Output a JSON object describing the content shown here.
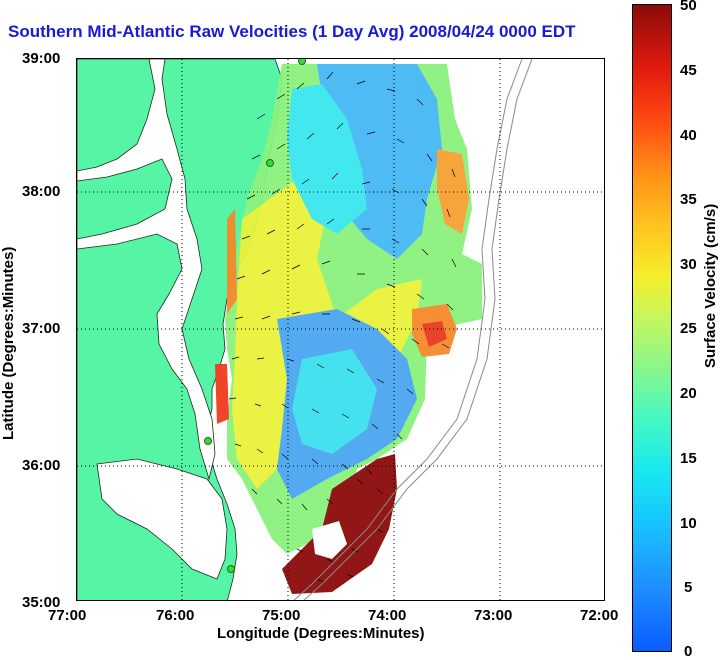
{
  "title": "Southern Mid-Atlantic Raw Velocities (1 Day Avg) 2008/04/24 0000 EDT",
  "xlabel": "Longitude (Degrees:Minutes)",
  "ylabel": "Latitude (Degrees:Minutes)",
  "x_ticks": [
    "77:00",
    "76:00",
    "75:00",
    "74:00",
    "73:00",
    "72:00"
  ],
  "y_ticks": [
    "39:00",
    "38:00",
    "37:00",
    "36:00",
    "35:00"
  ],
  "colorbar": {
    "label": "Surface Velocity (cm/s)",
    "ticks": [
      "50",
      "45",
      "40",
      "35",
      "30",
      "25",
      "20",
      "15",
      "10",
      "5",
      "0"
    ],
    "range": [
      0,
      50
    ]
  },
  "colors": {
    "land": "#56f5a6",
    "title": "#1a1ad6",
    "grid": "#000000"
  }
}
